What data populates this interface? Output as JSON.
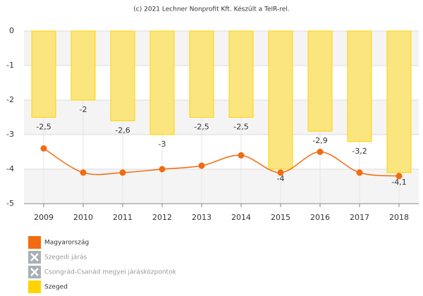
{
  "chart_data": {
    "type": "bar_line",
    "credit": "(c) 2021 Lechner Nonprofit Kft. Készült a TeIR-rel.",
    "categories": [
      "2009",
      "2010",
      "2011",
      "2012",
      "2013",
      "2014",
      "2015",
      "2016",
      "2017",
      "2018"
    ],
    "series": [
      {
        "name": "Magyarország",
        "type": "line",
        "color": "#f26b11",
        "values": [
          -3.4,
          -4.1,
          -4.1,
          -4.0,
          -3.9,
          -3.6,
          -4.1,
          -3.5,
          -4.1,
          -4.2
        ]
      },
      {
        "name": "Szeged",
        "type": "bar",
        "color": "#ffd400",
        "values": [
          -2.5,
          -2,
          -2.6,
          -3,
          -2.5,
          -2.5,
          -4,
          -2.9,
          -3.2,
          -4.1
        ],
        "value_labels": [
          "-2,5",
          "-2",
          "-2,6",
          "-3",
          "-2,5",
          "-2,5",
          "-4",
          "-2,9",
          "-3,2",
          "-4,1"
        ]
      }
    ],
    "hidden_series": [
      "Szegedi járás",
      "Csongrád-Csanád megyei járásközpontok"
    ],
    "ylim": [
      -5,
      0
    ],
    "yticks": [
      0,
      -1,
      -2,
      -3,
      -4,
      -5
    ],
    "grid": true,
    "alternate_bands": true
  }
}
